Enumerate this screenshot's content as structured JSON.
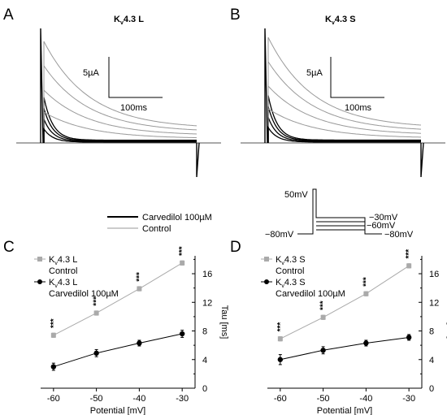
{
  "panels": {
    "A": {
      "letter": "A",
      "title_main": "K",
      "title_sub": "v",
      "title_rest": "4.3 L",
      "scale_current": "5µA",
      "scale_time": "100ms"
    },
    "B": {
      "letter": "B",
      "title_main": "K",
      "title_sub": "v",
      "title_rest": "4.3 S",
      "scale_current": "5µA",
      "scale_time": "100ms"
    },
    "C": {
      "letter": "C"
    },
    "D": {
      "letter": "D"
    }
  },
  "trace_legend": {
    "carvedilol": "Carvedilol 100µM",
    "control": "Control",
    "carvedilol_color": "#000000",
    "control_color": "#999999"
  },
  "protocol": {
    "holding": "−80mV",
    "prepulse": "50mV",
    "step_top": "−30mV",
    "step_bottom": "−60mV",
    "return": "−80mV"
  },
  "chart_data": [
    {
      "type": "line",
      "panel": "C",
      "xlabel": "Potential [mV]",
      "ylabel": "Tau [ms]",
      "x": [
        -60,
        -50,
        -40,
        -30
      ],
      "xlim": [
        -63,
        -27
      ],
      "ylim": [
        0,
        18.5
      ],
      "yticks": [
        0,
        4,
        8,
        12,
        16
      ],
      "series": [
        {
          "name_main": "K",
          "name_sub": "v",
          "name_rest": "4.3 L",
          "name_line2": "Control",
          "color": "#aaaaaa",
          "marker": "square",
          "values": [
            7.4,
            10.5,
            13.9,
            17.5
          ],
          "errors": [
            0.3,
            0.3,
            0.3,
            0.3
          ],
          "significance": [
            "***",
            "***",
            "***",
            "***"
          ]
        },
        {
          "name_main": "K",
          "name_sub": "v",
          "name_rest": "4.3 L",
          "name_line2": "Carvedilol 100µM",
          "color": "#000000",
          "marker": "circle",
          "values": [
            3.0,
            4.9,
            6.3,
            7.6
          ],
          "errors": [
            0.5,
            0.5,
            0.4,
            0.5
          ]
        }
      ]
    },
    {
      "type": "line",
      "panel": "D",
      "xlabel": "Potential [mV]",
      "ylabel": "Tau [ms]",
      "x": [
        -60,
        -50,
        -40,
        -30
      ],
      "xlim": [
        -63,
        -27
      ],
      "ylim": [
        0,
        18.5
      ],
      "yticks": [
        0,
        4,
        8,
        12,
        16
      ],
      "series": [
        {
          "name_main": "K",
          "name_sub": "v",
          "name_rest": "4.3 S",
          "name_line2": "Control",
          "color": "#aaaaaa",
          "marker": "square",
          "values": [
            6.9,
            9.9,
            13.2,
            17.1
          ],
          "errors": [
            0.3,
            0.3,
            0.3,
            0.3
          ],
          "significance": [
            "***",
            "***",
            "***",
            "***"
          ]
        },
        {
          "name_main": "K",
          "name_sub": "v",
          "name_rest": "4.3 S",
          "name_line2": "Carvedilol 100µM",
          "color": "#000000",
          "marker": "circle",
          "values": [
            4.0,
            5.3,
            6.3,
            7.1
          ],
          "errors": [
            0.7,
            0.5,
            0.4,
            0.4
          ]
        }
      ]
    }
  ]
}
